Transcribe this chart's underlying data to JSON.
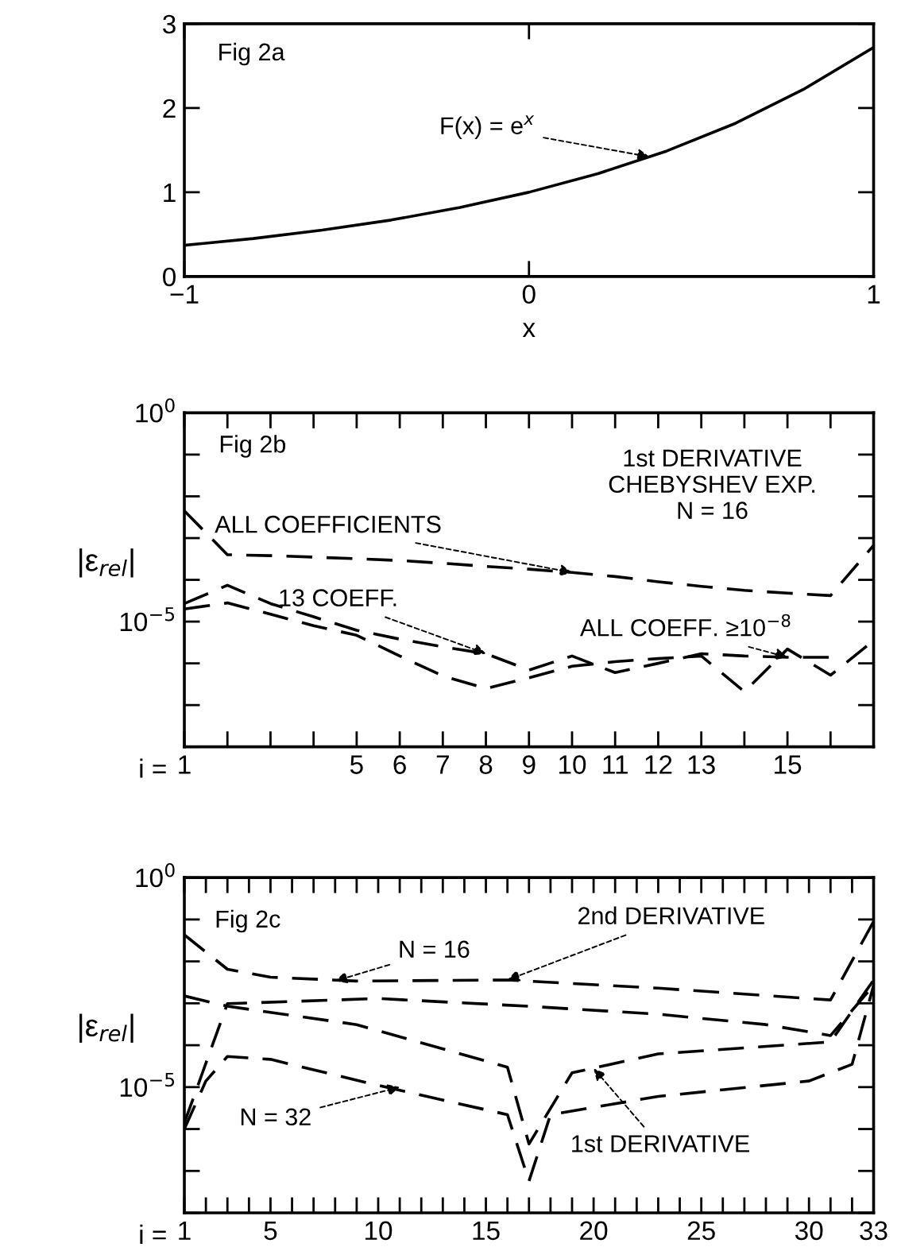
{
  "chart_data": [
    {
      "type": "line",
      "xlabel": "x",
      "xlim": [
        -1,
        1
      ],
      "ylim": [
        0,
        3
      ],
      "xticks": [
        {
          "value": -1,
          "label": "−1"
        },
        0,
        1
      ],
      "yticks": [
        0,
        1,
        2,
        3
      ],
      "grid": false,
      "marker": "none",
      "line_style": "solid",
      "annotations": [
        "Fig 2a",
        {
          "text": "F(x) = e$^{x}$",
          "x": 0.35,
          "y": 1.42
        }
      ],
      "series": [
        {
          "color": "#000000",
          "x": [
            -1,
            -0.8,
            -0.6,
            -0.4,
            -0.2,
            0,
            0.2,
            0.4,
            0.6,
            0.8,
            1
          ],
          "values": [
            0.37,
            0.45,
            0.55,
            0.67,
            0.82,
            1.0,
            1.22,
            1.49,
            1.82,
            2.23,
            2.72
          ]
        }
      ]
    },
    {
      "type": "line",
      "xlabel": "i =",
      "ylabel": "|ε$_{rel}$|",
      "log": "y",
      "ylim": [
        1e-08,
        1
      ],
      "grid": false,
      "marker": "none",
      "line_style": "dashed",
      "categories": [
        "1",
        null,
        null,
        null,
        "5",
        "6",
        "7",
        "8",
        "9",
        "10",
        "11",
        "12",
        "13",
        null,
        "15",
        null,
        null
      ],
      "yticks": [
        {
          "value": 1,
          "label": "10$^{0}$"
        },
        {
          "value": 0.1,
          "label": null
        },
        {
          "value": 0.01,
          "label": null
        },
        {
          "value": 0.001,
          "label": null
        },
        {
          "value": 0.0001,
          "label": null
        },
        {
          "value": 1e-05,
          "label": "10$^{−5}$"
        },
        {
          "value": 1e-06,
          "label": null
        },
        {
          "value": 1e-07,
          "label": null
        },
        {
          "value": 1e-08,
          "label": null
        }
      ],
      "annotations": [
        "Fig 2b",
        "1st DERIVATIVE\nCHEBYSHEV EXP.\nN = 16",
        {
          "text": "ALL COEFFICIENTS",
          "x": "10",
          "y": 0.00015
        },
        {
          "text": "13 COEFF.",
          "x": "8",
          "y": 1.7e-06
        },
        {
          "text": "ALL COEFF. ≥10$^{−8}$",
          "x": "15",
          "y": 1.4e-06
        }
      ],
      "series": [
        {
          "color": "#000000",
          "values": [
            0.0045,
            0.0004,
            0.00038,
            0.00035,
            0.00032,
            0.00029,
            0.00025,
            0.00021,
            0.00018,
            0.00015,
            0.00012,
            9e-05,
            7e-05,
            5.6e-05,
            4.8e-05,
            4.2e-05,
            0.00067
          ]
        },
        {
          "color": "#000000",
          "values": [
            2.7e-05,
            7.4e-05,
            2.7e-05,
            1.3e-05,
            6.2e-06,
            3.8e-06,
            2.5e-06,
            1.7e-06,
            6.9e-07,
            1.5e-06,
            6e-07,
            1e-06,
            1.7e-06,
            1.5e-06,
            1.4e-06,
            1.4e-06,
            null
          ]
        },
        {
          "color": "#000000",
          "values": [
            2e-05,
            2.8e-05,
            1.5e-05,
            8e-06,
            4.7e-06,
            1.5e-06,
            5e-07,
            2.5e-07,
            4.5e-07,
            8.5e-07,
            1.1e-06,
            1.3e-06,
            1.5e-06,
            2.1e-07,
            2.2e-06,
            5.2e-07,
            3.5e-06
          ]
        }
      ]
    },
    {
      "type": "line",
      "xlabel": "i =",
      "ylabel": "|ε$_{rel}$|",
      "log": "y",
      "xlim": [
        1,
        33
      ],
      "ylim": [
        1e-08,
        1
      ],
      "grid": false,
      "marker": "none",
      "line_style": "dashed",
      "xticks": [
        1,
        {
          "value": 2,
          "label": null
        },
        {
          "value": 3,
          "label": null
        },
        {
          "value": 4,
          "label": null
        },
        5,
        {
          "value": 6,
          "label": null
        },
        {
          "value": 7,
          "label": null
        },
        {
          "value": 8,
          "label": null
        },
        {
          "value": 9,
          "label": null
        },
        10,
        {
          "value": 11,
          "label": null
        },
        {
          "value": 12,
          "label": null
        },
        {
          "value": 13,
          "label": null
        },
        {
          "value": 14,
          "label": null
        },
        15,
        {
          "value": 16,
          "label": null
        },
        {
          "value": 17,
          "label": null
        },
        {
          "value": 18,
          "label": null
        },
        {
          "value": 19,
          "label": null
        },
        20,
        {
          "value": 21,
          "label": null
        },
        {
          "value": 22,
          "label": null
        },
        {
          "value": 23,
          "label": null
        },
        {
          "value": 24,
          "label": null
        },
        25,
        {
          "value": 26,
          "label": null
        },
        {
          "value": 27,
          "label": null
        },
        {
          "value": 28,
          "label": null
        },
        {
          "value": 29,
          "label": null
        },
        30,
        {
          "value": 31,
          "label": null
        },
        {
          "value": 32,
          "label": null
        },
        33
      ],
      "yticks": [
        {
          "value": 1,
          "label": "10$^{0}$"
        },
        {
          "value": 0.1,
          "label": null
        },
        {
          "value": 0.01,
          "label": null
        },
        {
          "value": 0.001,
          "label": null
        },
        {
          "value": 0.0001,
          "label": null
        },
        {
          "value": 1e-05,
          "label": "10$^{−5}$"
        },
        {
          "value": 1e-06,
          "label": null
        },
        {
          "value": 1e-07,
          "label": null
        },
        {
          "value": 1e-08,
          "label": null
        }
      ],
      "annotations": [
        "Fig 2c",
        {
          "text": "2nd DERIVATIVE",
          "x": 16,
          "y": 0.0036
        },
        {
          "text": "N = 16",
          "x": 8,
          "y": 0.0034
        },
        {
          "text": "N = 32",
          "x": 11,
          "y": 1e-05
        },
        {
          "text": "1st DERIVATIVE",
          "x": 20,
          "y": 2.8e-05
        }
      ],
      "series": [
        {
          "color": "#000000",
          "x": [
            1,
            3,
            5,
            9,
            16,
            23,
            31,
            33
          ],
          "values": [
            0.043,
            0.0065,
            0.0042,
            0.0034,
            0.0036,
            0.0023,
            0.0012,
            0.09
          ]
        },
        {
          "color": "#000000",
          "x": [
            1,
            3,
            10,
            17,
            23,
            28,
            31,
            33
          ],
          "values": [
            1.4e-06,
            0.00098,
            0.0013,
            0.00085,
            0.00055,
            0.00031,
            0.00017,
            0.0027
          ]
        },
        {
          "color": "#000000",
          "x": [
            1,
            3,
            9,
            16,
            17,
            19,
            23,
            31,
            33
          ],
          "values": [
            0.0015,
            0.00085,
            0.00031,
            3e-05,
            4.4e-07,
            2.2e-05,
            6.2e-05,
            0.00012,
            0.0036
          ]
        },
        {
          "color": "#000000",
          "x": [
            1,
            2,
            3,
            5,
            10,
            16,
            17,
            18,
            23,
            30,
            32,
            33
          ],
          "values": [
            1e-06,
            1.4e-05,
            5.4e-05,
            4.6e-05,
            1.1e-05,
            2.2e-06,
            5.7e-08,
            2.2e-06,
            6e-06,
            1.4e-05,
            3.5e-05,
            0.0027
          ]
        }
      ]
    }
  ]
}
